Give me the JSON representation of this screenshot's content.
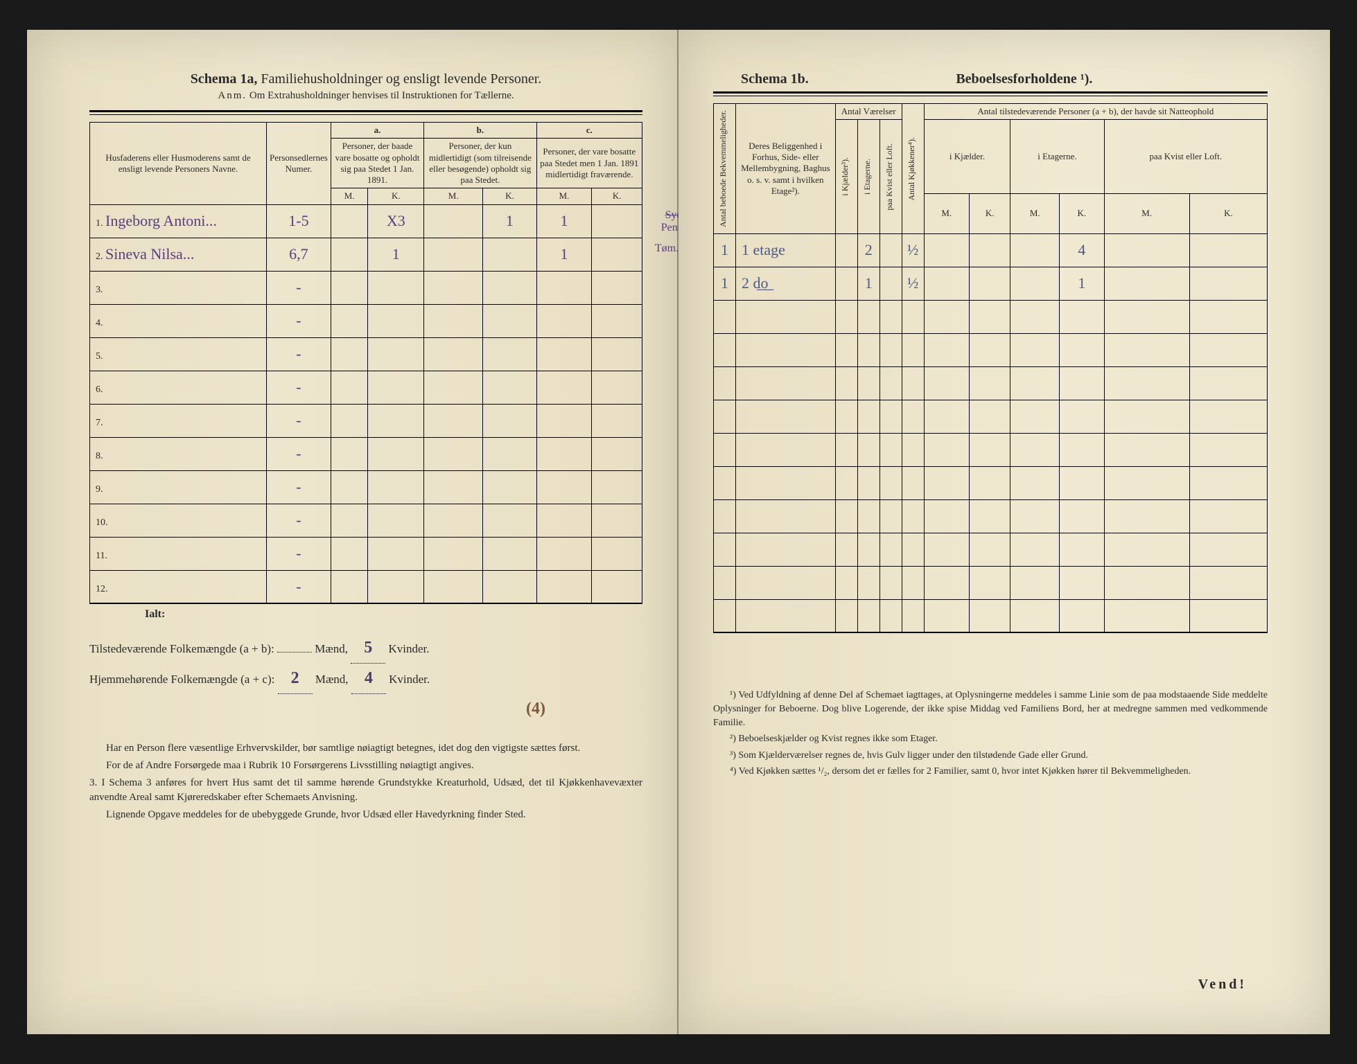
{
  "left": {
    "schema_label": "Schema 1a,",
    "schema_title": "Familiehusholdninger og ensligt levende Personer.",
    "anm_label": "Anm.",
    "anm_text": "Om Extrahusholdninger henvises til Instruktionen for Tællerne.",
    "headers": {
      "col1": "Husfaderens eller Husmoderens samt de ensligt levende Personers Navne.",
      "col2": "Personsedlernes Numer.",
      "group_a": "a.",
      "group_a_text": "Personer, der baade vare bosatte og opholdt sig paa Stedet 1 Jan. 1891.",
      "group_b": "b.",
      "group_b_text": "Personer, der kun midlertidigt (som tilreisende eller besøgende) opholdt sig paa Stedet.",
      "group_c": "c.",
      "group_c_text": "Personer, der vare bosatte paa Stedet men 1 Jan. 1891 midlertidigt fraværende.",
      "m": "M.",
      "k": "K."
    },
    "rows": [
      {
        "n": "1.",
        "name": "Ingeborg Antoni...",
        "num": "1-5",
        "a_m": "",
        "a_k": "X3",
        "b_m": "",
        "b_k": "1",
        "c_m": "1",
        "c_k": "",
        "margin": "Pensionat",
        "margin_strike": "Syerske"
      },
      {
        "n": "2.",
        "name": "Sineva Nilsa...",
        "num": "6,7",
        "a_m": "",
        "a_k": "1",
        "b_m": "",
        "b_k": "",
        "c_m": "1",
        "c_k": "",
        "margin": "Tøm... klin"
      },
      {
        "n": "3.",
        "name": "",
        "num": "-",
        "a_m": "",
        "a_k": "",
        "b_m": "",
        "b_k": "",
        "c_m": "",
        "c_k": ""
      },
      {
        "n": "4.",
        "name": "",
        "num": "-",
        "a_m": "",
        "a_k": "",
        "b_m": "",
        "b_k": "",
        "c_m": "",
        "c_k": ""
      },
      {
        "n": "5.",
        "name": "",
        "num": "-",
        "a_m": "",
        "a_k": "",
        "b_m": "",
        "b_k": "",
        "c_m": "",
        "c_k": ""
      },
      {
        "n": "6.",
        "name": "",
        "num": "-",
        "a_m": "",
        "a_k": "",
        "b_m": "",
        "b_k": "",
        "c_m": "",
        "c_k": ""
      },
      {
        "n": "7.",
        "name": "",
        "num": "-",
        "a_m": "",
        "a_k": "",
        "b_m": "",
        "b_k": "",
        "c_m": "",
        "c_k": ""
      },
      {
        "n": "8.",
        "name": "",
        "num": "-",
        "a_m": "",
        "a_k": "",
        "b_m": "",
        "b_k": "",
        "c_m": "",
        "c_k": ""
      },
      {
        "n": "9.",
        "name": "",
        "num": "-",
        "a_m": "",
        "a_k": "",
        "b_m": "",
        "b_k": "",
        "c_m": "",
        "c_k": ""
      },
      {
        "n": "10.",
        "name": "",
        "num": "-",
        "a_m": "",
        "a_k": "",
        "b_m": "",
        "b_k": "",
        "c_m": "",
        "c_k": ""
      },
      {
        "n": "11.",
        "name": "",
        "num": "-",
        "a_m": "",
        "a_k": "",
        "b_m": "",
        "b_k": "",
        "c_m": "",
        "c_k": ""
      },
      {
        "n": "12.",
        "name": "",
        "num": "-",
        "a_m": "",
        "a_k": "",
        "b_m": "",
        "b_k": "",
        "c_m": "",
        "c_k": ""
      }
    ],
    "ialt": "Ialt:",
    "totals": {
      "line1_label": "Tilstedeværende Folkemængde (a + b):",
      "line1_m": "",
      "line1_maend": "Mænd,",
      "line1_k": "5",
      "line1_kvinder": "Kvinder.",
      "line2_label": "Hjemmehørende Folkemængde (a + c):",
      "line2_m": "2",
      "line2_maend": "Mænd,",
      "line2_k": "4",
      "line2_kvinder": "Kvinder.",
      "annotation": "(4)"
    },
    "footnotes": [
      "Har en Person flere væsentlige Erhvervskilder, bør samtlige nøiagtigt betegnes, idet dog den vigtigste sættes først.",
      "For de af Andre Forsørgede maa i Rubrik 10 Forsørgerens Livsstilling nøiagtigt angives.",
      "3. I Schema 3 anføres for hvert Hus samt det til samme hørende Grundstykke Kreaturhold, Udsæd, det til Kjøkkenhavevæxter anvendte Areal samt Kjøreredskaber efter Schemaets Anvisning.",
      "Lignende Opgave meddeles for de ubebyggede Grunde, hvor Udsæd eller Havedyrkning finder Sted."
    ]
  },
  "right": {
    "schema_label": "Schema 1b.",
    "schema_title": "Beboelsesforholdene ¹).",
    "headers": {
      "col1": "Antal beboede Bekvemmeligheder.",
      "col2": "Deres Beliggenhed i Forhus, Side- eller Mellembygning, Baghus o. s. v. samt i hvilken Etage²).",
      "antal_vaer": "Antal Værelser",
      "i_kjaelder": "i Kjælder³).",
      "i_etagerne": "i Etagerne.",
      "paa_kvist": "paa Kvist eller Loft.",
      "antal_kjok": "Antal Kjøkkener⁴).",
      "persons_title": "Antal tilstedeværende Personer (a + b), der havde sit Natteophold",
      "p_kjaelder": "i Kjælder.",
      "p_etagerne": "i Etagerne.",
      "p_kvist": "paa Kvist eller Loft.",
      "m": "M.",
      "k": "K."
    },
    "rows": [
      {
        "bekv": "1",
        "belig": "1 etage",
        "vk": "",
        "ve": "2",
        "vkv": "",
        "kjok": "½",
        "pkm": "",
        "pkk": "",
        "pem": "",
        "pek": "4",
        "pkvm": "",
        "pkvk": ""
      },
      {
        "bekv": "1",
        "belig": "2 d͟o͟",
        "vk": "",
        "ve": "1",
        "vkv": "",
        "kjok": "½",
        "pkm": "",
        "pkk": "",
        "pem": "",
        "pek": "1",
        "pkvm": "",
        "pkvk": ""
      },
      {
        "bekv": "",
        "belig": "",
        "vk": "",
        "ve": "",
        "vkv": "",
        "kjok": "",
        "pkm": "",
        "pkk": "",
        "pem": "",
        "pek": "",
        "pkvm": "",
        "pkvk": ""
      },
      {
        "bekv": "",
        "belig": "",
        "vk": "",
        "ve": "",
        "vkv": "",
        "kjok": "",
        "pkm": "",
        "pkk": "",
        "pem": "",
        "pek": "",
        "pkvm": "",
        "pkvk": ""
      },
      {
        "bekv": "",
        "belig": "",
        "vk": "",
        "ve": "",
        "vkv": "",
        "kjok": "",
        "pkm": "",
        "pkk": "",
        "pem": "",
        "pek": "",
        "pkvm": "",
        "pkvk": ""
      },
      {
        "bekv": "",
        "belig": "",
        "vk": "",
        "ve": "",
        "vkv": "",
        "kjok": "",
        "pkm": "",
        "pkk": "",
        "pem": "",
        "pek": "",
        "pkvm": "",
        "pkvk": ""
      },
      {
        "bekv": "",
        "belig": "",
        "vk": "",
        "ve": "",
        "vkv": "",
        "kjok": "",
        "pkm": "",
        "pkk": "",
        "pem": "",
        "pek": "",
        "pkvm": "",
        "pkvk": ""
      },
      {
        "bekv": "",
        "belig": "",
        "vk": "",
        "ve": "",
        "vkv": "",
        "kjok": "",
        "pkm": "",
        "pkk": "",
        "pem": "",
        "pek": "",
        "pkvm": "",
        "pkvk": ""
      },
      {
        "bekv": "",
        "belig": "",
        "vk": "",
        "ve": "",
        "vkv": "",
        "kjok": "",
        "pkm": "",
        "pkk": "",
        "pem": "",
        "pek": "",
        "pkvm": "",
        "pkvk": ""
      },
      {
        "bekv": "",
        "belig": "",
        "vk": "",
        "ve": "",
        "vkv": "",
        "kjok": "",
        "pkm": "",
        "pkk": "",
        "pem": "",
        "pek": "",
        "pkvm": "",
        "pkvk": ""
      },
      {
        "bekv": "",
        "belig": "",
        "vk": "",
        "ve": "",
        "vkv": "",
        "kjok": "",
        "pkm": "",
        "pkk": "",
        "pem": "",
        "pek": "",
        "pkvm": "",
        "pkvk": ""
      },
      {
        "bekv": "",
        "belig": "",
        "vk": "",
        "ve": "",
        "vkv": "",
        "kjok": "",
        "pkm": "",
        "pkk": "",
        "pem": "",
        "pek": "",
        "pkvm": "",
        "pkvk": ""
      }
    ],
    "footnotes": [
      "¹) Ved Udfyldning af denne Del af Schemaet iagttages, at Oplysningerne meddeles i samme Linie som de paa modstaaende Side meddelte Oplysninger for Beboerne. Dog blive Logerende, der ikke spise Middag ved Familiens Bord, her at medregne sammen med vedkommende Familie.",
      "²) Beboelseskjælder og Kvist regnes ikke som Etager.",
      "³) Som Kjælderværelser regnes de, hvis Gulv ligger under den tilstødende Gade eller Grund.",
      "⁴) Ved Kjøkken sættes ¹/₂, dersom det er fælles for 2 Familier, samt 0, hvor intet Kjøkken hører til Bekvemmeligheden."
    ],
    "vend": "Vend!"
  },
  "colors": {
    "paper": "#ede5cc",
    "ink": "#2a2a2a",
    "handwriting": "#5a3d7a"
  }
}
